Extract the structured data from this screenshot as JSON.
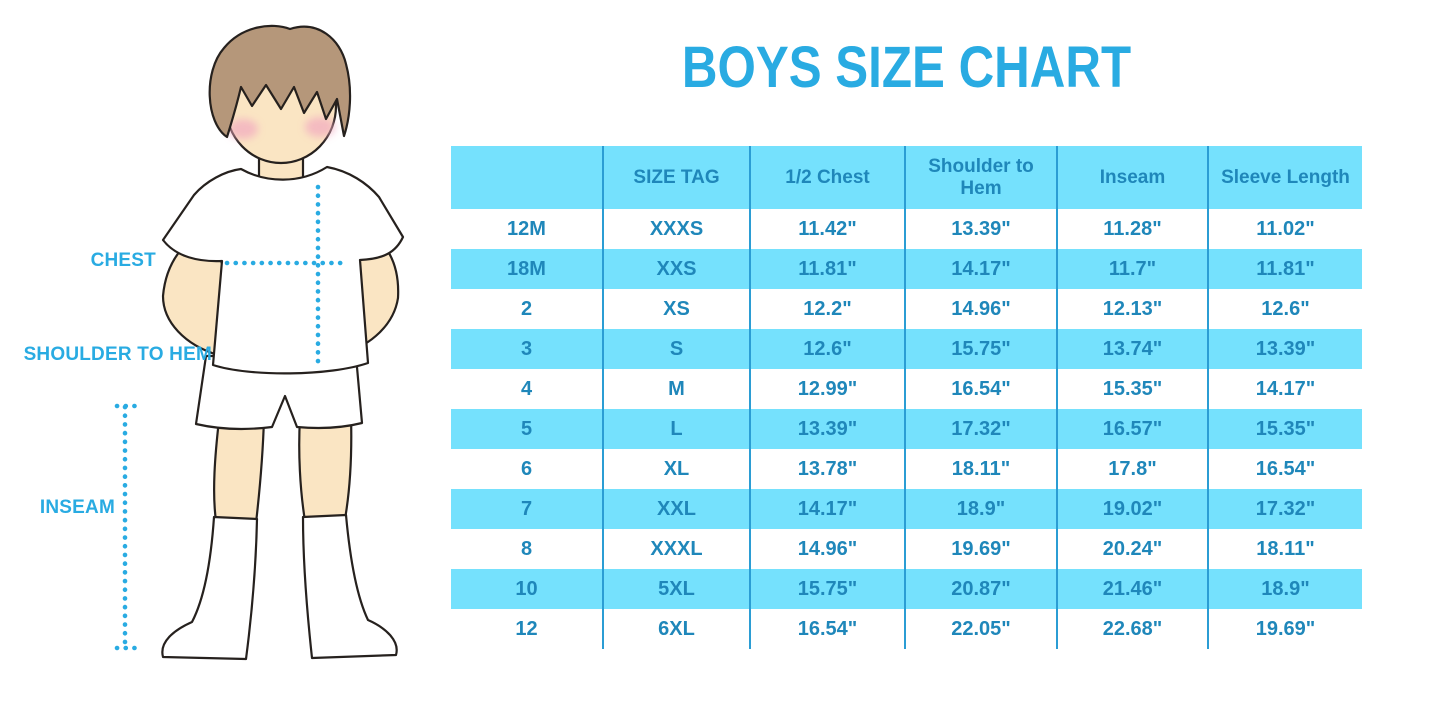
{
  "title": "BOYS SIZE CHART",
  "illustration": {
    "figure": "boy-wearing-tshirt-shorts-and-socks",
    "labels": {
      "chest": "CHEST",
      "shoulder_to_hem": "SHOULDER TO HEM",
      "inseam": "INSEAM"
    }
  },
  "chart_data": {
    "type": "table",
    "title": "BOYS SIZE CHART",
    "columns": [
      "",
      "SIZE TAG",
      "1/2 Chest",
      "Shoulder to Hem",
      "Inseam",
      "Sleeve Length"
    ],
    "rows": [
      [
        "12M",
        "XXXS",
        "11.42\"",
        "13.39\"",
        "11.28\"",
        "11.02\""
      ],
      [
        "18M",
        "XXS",
        "11.81\"",
        "14.17\"",
        "11.7\"",
        "11.81\""
      ],
      [
        "2",
        "XS",
        "12.2\"",
        "14.96\"",
        "12.13\"",
        "12.6\""
      ],
      [
        "3",
        "S",
        "12.6\"",
        "15.75\"",
        "13.74\"",
        "13.39\""
      ],
      [
        "4",
        "M",
        "12.99\"",
        "16.54\"",
        "15.35\"",
        "14.17\""
      ],
      [
        "5",
        "L",
        "13.39\"",
        "17.32\"",
        "16.57\"",
        "15.35\""
      ],
      [
        "6",
        "XL",
        "13.78\"",
        "18.11\"",
        "17.8\"",
        "16.54\""
      ],
      [
        "7",
        "XXL",
        "14.17\"",
        "18.9\"",
        "19.02\"",
        "17.32\""
      ],
      [
        "8",
        "XXXL",
        "14.96\"",
        "19.69\"",
        "20.24\"",
        "18.11\""
      ],
      [
        "10",
        "5XL",
        "15.75\"",
        "20.87\"",
        "21.46\"",
        "18.9\""
      ],
      [
        "12",
        "6XL",
        "16.54\"",
        "22.05\"",
        "22.68\"",
        "19.69\""
      ]
    ],
    "layout_hints": {
      "striped_rows": true,
      "stripe_pattern": "header cyan, then alternating white/cyan starting white",
      "column_dividers": "vertical lines between all columns"
    }
  },
  "colors": {
    "accent_blue": "#29ABE2",
    "table_text": "#1F87BA",
    "stripe_cyan": "#75E1FD",
    "divider": "#2B9DD4",
    "skin": "#FAE5C3",
    "hair": "#B5977A",
    "blush": "#F2A9C0"
  }
}
